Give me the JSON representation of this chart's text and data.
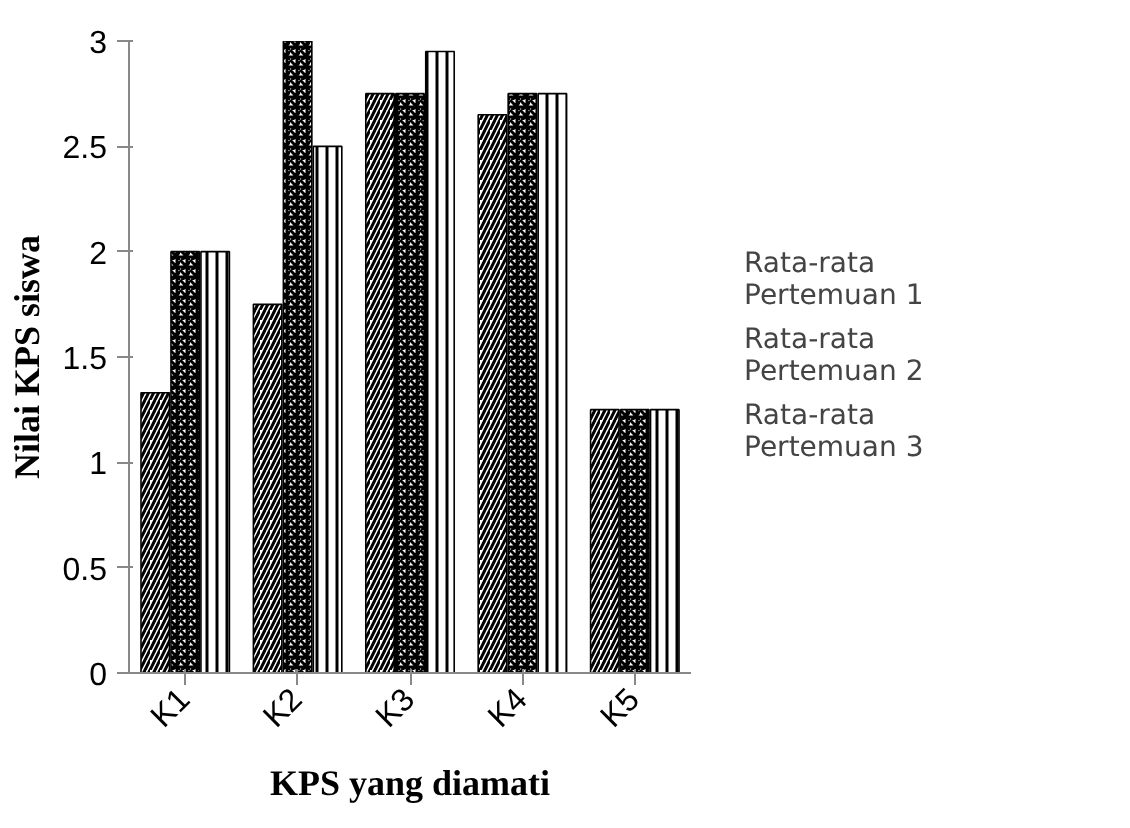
{
  "chart_data": {
    "type": "bar",
    "xlabel": "KPS yang diamati",
    "ylabel": "Nilai KPS siswa",
    "categories": [
      "K1",
      "K2",
      "K3",
      "K4",
      "K5"
    ],
    "series": [
      {
        "name": "Rata-rata Pertemuan 1",
        "color": "#000000",
        "values": [
          1.33,
          1.75,
          2.75,
          2.65,
          1.25
        ]
      },
      {
        "name": "Rata-rata Pertemuan 2",
        "color": "#000000",
        "values": [
          2.0,
          3.0,
          2.75,
          2.75,
          1.25
        ]
      },
      {
        "name": "Rata-rata Pertemuan 3",
        "color": "#000000",
        "values": [
          2.0,
          2.5,
          2.95,
          2.75,
          1.25
        ]
      }
    ],
    "ylim": [
      0,
      3
    ],
    "yticks": [
      0,
      0.5,
      1,
      1.5,
      2,
      2.5,
      3
    ],
    "legend": "right"
  }
}
